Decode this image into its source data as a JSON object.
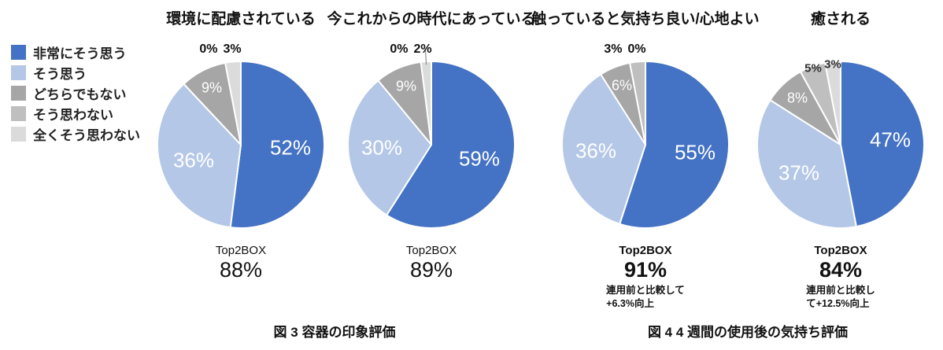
{
  "palette": [
    "#4472C4",
    "#B4C7E7",
    "#A6A6A6",
    "#BFBFBF",
    "#DBDBDB"
  ],
  "legend": {
    "items": [
      {
        "label": "非常にそう思う",
        "color": "#4472C4"
      },
      {
        "label": "そう思う",
        "color": "#B4C7E7"
      },
      {
        "label": "どちらでもない",
        "color": "#A6A6A6"
      },
      {
        "label": "そう思わない",
        "color": "#BFBFBF"
      },
      {
        "label": "全くそう思わない",
        "color": "#DBDBDB"
      }
    ]
  },
  "chart_data": [
    {
      "type": "pie",
      "title": "環境に配慮されている",
      "categories": [
        "非常にそう思う",
        "そう思う",
        "どちらでもない",
        "そう思わない",
        "全くそう思わない"
      ],
      "values": [
        52,
        36,
        9,
        0,
        3
      ],
      "slice_labels": [
        "52%",
        "36%",
        "9%",
        "0%",
        "3%"
      ],
      "label_placement": [
        "in-big",
        "in-big",
        "in-small",
        "out",
        "out"
      ],
      "top2box_label": "Top2BOX",
      "top2box_value": "88%",
      "note_lines": [],
      "emphasis": false,
      "leader_line": false
    },
    {
      "type": "pie",
      "title": "今これからの時代にあっている",
      "categories": [
        "非常にそう思う",
        "そう思う",
        "どちらでもない",
        "そう思わない",
        "全くそう思わない"
      ],
      "values": [
        59,
        30,
        9,
        0,
        2
      ],
      "slice_labels": [
        "59%",
        "30%",
        "9%",
        "0%",
        "2%"
      ],
      "label_placement": [
        "in-big",
        "in-big",
        "in-small",
        "out",
        "out"
      ],
      "top2box_label": "Top2BOX",
      "top2box_value": "89%",
      "note_lines": [],
      "emphasis": false,
      "leader_line": true
    },
    {
      "type": "pie",
      "title": "触っていると気持ち良い/心地よい",
      "categories": [
        "非常にそう思う",
        "そう思う",
        "どちらでもない",
        "そう思わない",
        "全くそう思わない"
      ],
      "values": [
        55,
        36,
        6,
        3,
        0
      ],
      "slice_labels": [
        "55%",
        "36%",
        "6%",
        "3%",
        "0%"
      ],
      "label_placement": [
        "in-big",
        "in-big",
        "in-small",
        "out",
        "out"
      ],
      "top2box_label": "Top2BOX",
      "top2box_value": "91%",
      "note_lines": [
        "連用前と比較して",
        "+6.3%向上"
      ],
      "emphasis": true,
      "leader_line": false
    },
    {
      "type": "pie",
      "title": "癒される",
      "categories": [
        "非常にそう思う",
        "そう思う",
        "どちらでもない",
        "そう思わない",
        "全くそう思わない"
      ],
      "values": [
        47,
        37,
        8,
        5,
        3
      ],
      "slice_labels": [
        "47%",
        "37%",
        "8%",
        "5%",
        "3%"
      ],
      "label_placement": [
        "in-big",
        "in-big",
        "in-small",
        "edge",
        "edge"
      ],
      "top2box_label": "Top2BOX",
      "top2box_value": "84%",
      "note_lines": [
        "連用前と比較し",
        "て+12.5%向上"
      ],
      "emphasis": true,
      "leader_line": false
    }
  ],
  "captions": [
    {
      "text": "図 3 容器の印象評価"
    },
    {
      "text": "図 4 4 週間の使用後の気持ち評価"
    }
  ]
}
